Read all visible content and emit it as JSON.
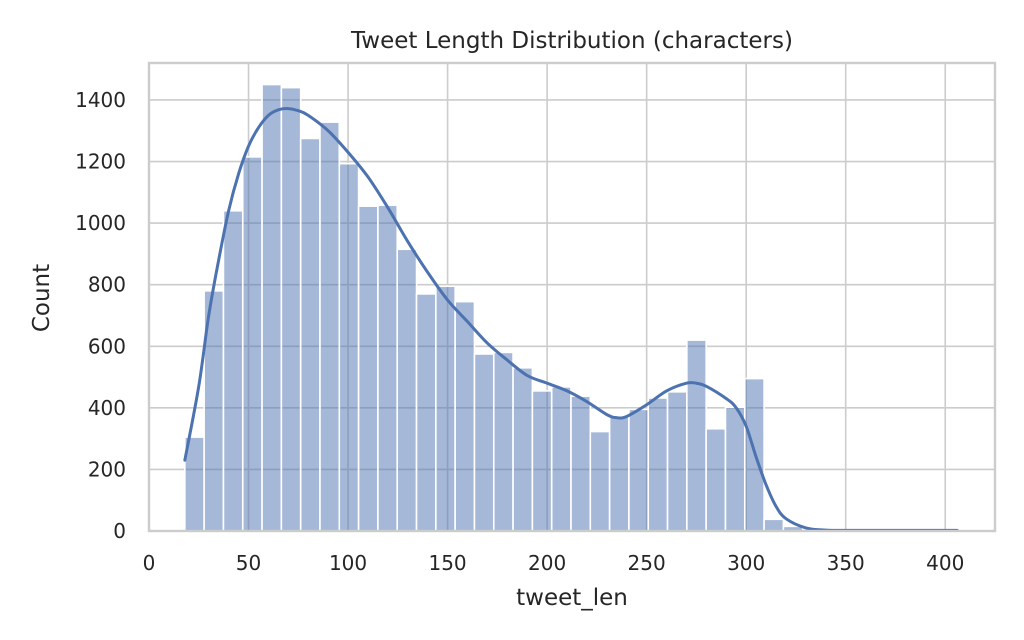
{
  "chart_data": {
    "type": "bar",
    "title": "Tweet Length Distribution (characters)",
    "xlabel": "tweet_len",
    "ylabel": "Count",
    "xlim": [
      0,
      425
    ],
    "ylim": [
      0,
      1520
    ],
    "xticks": [
      0,
      50,
      100,
      150,
      200,
      250,
      300,
      350,
      400
    ],
    "yticks": [
      0,
      200,
      400,
      600,
      800,
      1000,
      1200,
      1400
    ],
    "grid": true,
    "bar_color": "#4c72b0",
    "bar_opacity": 0.5,
    "kde_color": "#4c72b0",
    "bins": [
      {
        "x0": 18.0,
        "x1": 27.7,
        "count": 305
      },
      {
        "x0": 27.7,
        "x1": 37.4,
        "count": 780
      },
      {
        "x0": 37.4,
        "x1": 47.1,
        "count": 1040
      },
      {
        "x0": 47.1,
        "x1": 56.8,
        "count": 1215
      },
      {
        "x0": 56.8,
        "x1": 66.5,
        "count": 1450
      },
      {
        "x0": 66.5,
        "x1": 76.2,
        "count": 1440
      },
      {
        "x0": 76.2,
        "x1": 85.9,
        "count": 1275
      },
      {
        "x0": 85.9,
        "x1": 95.6,
        "count": 1328
      },
      {
        "x0": 95.6,
        "x1": 105.3,
        "count": 1193
      },
      {
        "x0": 105.3,
        "x1": 115.0,
        "count": 1055
      },
      {
        "x0": 115.0,
        "x1": 124.7,
        "count": 1058
      },
      {
        "x0": 124.7,
        "x1": 134.4,
        "count": 915
      },
      {
        "x0": 134.4,
        "x1": 144.1,
        "count": 770
      },
      {
        "x0": 144.1,
        "x1": 153.8,
        "count": 795
      },
      {
        "x0": 153.8,
        "x1": 163.5,
        "count": 745
      },
      {
        "x0": 163.5,
        "x1": 173.2,
        "count": 575
      },
      {
        "x0": 173.2,
        "x1": 182.9,
        "count": 580
      },
      {
        "x0": 182.9,
        "x1": 192.6,
        "count": 530
      },
      {
        "x0": 192.6,
        "x1": 202.3,
        "count": 455
      },
      {
        "x0": 202.3,
        "x1": 212.0,
        "count": 468
      },
      {
        "x0": 212.0,
        "x1": 221.7,
        "count": 438
      },
      {
        "x0": 221.7,
        "x1": 231.4,
        "count": 323
      },
      {
        "x0": 231.4,
        "x1": 241.1,
        "count": 370
      },
      {
        "x0": 241.1,
        "x1": 250.8,
        "count": 395
      },
      {
        "x0": 250.8,
        "x1": 260.5,
        "count": 432
      },
      {
        "x0": 260.5,
        "x1": 270.2,
        "count": 452
      },
      {
        "x0": 270.2,
        "x1": 279.9,
        "count": 620
      },
      {
        "x0": 279.9,
        "x1": 289.6,
        "count": 332
      },
      {
        "x0": 289.6,
        "x1": 299.3,
        "count": 402
      },
      {
        "x0": 299.3,
        "x1": 309.0,
        "count": 495
      },
      {
        "x0": 309.0,
        "x1": 318.7,
        "count": 38
      },
      {
        "x0": 318.7,
        "x1": 328.4,
        "count": 15
      },
      {
        "x0": 328.4,
        "x1": 338.1,
        "count": 5
      },
      {
        "x0": 338.1,
        "x1": 347.8,
        "count": 3
      },
      {
        "x0": 347.8,
        "x1": 357.5,
        "count": 3
      },
      {
        "x0": 357.5,
        "x1": 367.2,
        "count": 2
      },
      {
        "x0": 367.2,
        "x1": 376.9,
        "count": 2
      },
      {
        "x0": 376.9,
        "x1": 386.6,
        "count": 2
      },
      {
        "x0": 386.6,
        "x1": 396.3,
        "count": 2
      },
      {
        "x0": 396.3,
        "x1": 406.0,
        "count": 2
      }
    ],
    "kde": {
      "x": [
        18,
        25,
        30,
        35,
        40,
        45,
        50,
        55,
        60,
        65,
        70,
        75,
        80,
        90,
        100,
        110,
        120,
        130,
        140,
        150,
        160,
        170,
        180,
        190,
        200,
        210,
        220,
        230,
        235,
        240,
        250,
        260,
        270,
        275,
        280,
        290,
        295,
        300,
        305,
        310,
        315,
        320,
        330,
        340,
        350,
        360,
        380,
        406
      ],
      "y": [
        230,
        470,
        700,
        880,
        1040,
        1160,
        1250,
        1310,
        1350,
        1368,
        1372,
        1365,
        1350,
        1300,
        1230,
        1150,
        1050,
        940,
        840,
        750,
        680,
        610,
        555,
        505,
        480,
        455,
        420,
        378,
        368,
        372,
        410,
        455,
        480,
        480,
        470,
        430,
        400,
        340,
        240,
        150,
        80,
        40,
        10,
        3,
        2,
        2,
        2,
        2
      ]
    }
  }
}
